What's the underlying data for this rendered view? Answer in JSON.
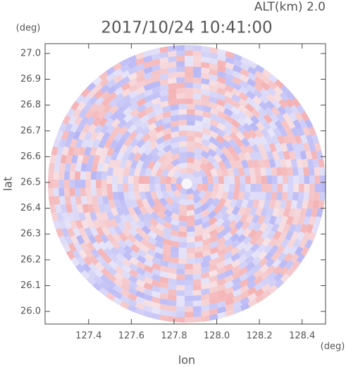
{
  "chart_data": {
    "type": "radar-ppi",
    "title": "2017/10/24 10:41:00",
    "altitude_label": "ALT(km) 2.0",
    "x_label": "lon",
    "y_label": "lat",
    "x_unit": "(deg)",
    "y_unit": "(deg)",
    "xlim": [
      127.196,
      128.51
    ],
    "ylim": [
      25.951,
      27.038
    ],
    "xticks": [
      127.4,
      127.6,
      127.8,
      {
        "value": 128.0,
        "label": "128.0"
      },
      128.2,
      128.4
    ],
    "yticks": [
      {
        "value": 26.0,
        "label": "26.0"
      },
      26.1,
      26.2,
      26.3,
      26.4,
      26.5,
      26.6,
      26.7,
      26.8,
      26.9,
      {
        "value": 27.0,
        "label": "27.0"
      }
    ]
  }
}
